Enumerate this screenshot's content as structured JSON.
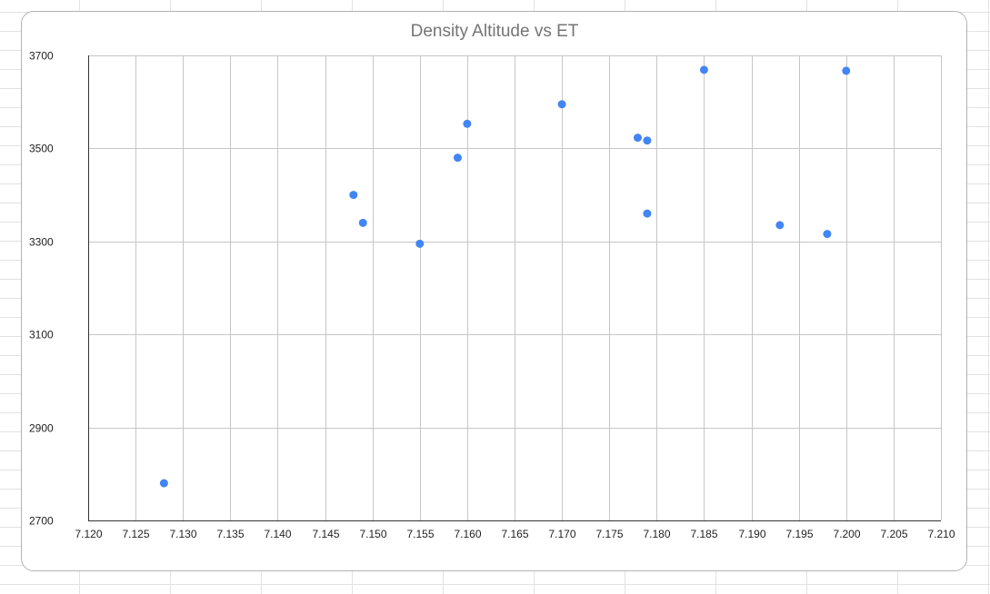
{
  "chart_data": {
    "type": "scatter",
    "title": "Density Altitude vs ET",
    "xlabel": "",
    "ylabel": "",
    "xlim": [
      7.12,
      7.21
    ],
    "ylim": [
      2700,
      3700
    ],
    "x_ticks": [
      "7.120",
      "7.125",
      "7.130",
      "7.135",
      "7.140",
      "7.145",
      "7.150",
      "7.155",
      "7.160",
      "7.165",
      "7.170",
      "7.175",
      "7.180",
      "7.185",
      "7.190",
      "7.195",
      "7.200",
      "7.205",
      "7.210"
    ],
    "y_ticks": [
      "2700",
      "2900",
      "3100",
      "3300",
      "3500",
      "3700"
    ],
    "grid": true,
    "legend": "none",
    "point_color": "#4285f4",
    "series": [
      {
        "points": [
          {
            "x": 7.128,
            "y": 2780
          },
          {
            "x": 7.148,
            "y": 3400
          },
          {
            "x": 7.149,
            "y": 3340
          },
          {
            "x": 7.155,
            "y": 3295
          },
          {
            "x": 7.159,
            "y": 3480
          },
          {
            "x": 7.16,
            "y": 3553
          },
          {
            "x": 7.17,
            "y": 3595
          },
          {
            "x": 7.178,
            "y": 3523
          },
          {
            "x": 7.179,
            "y": 3517
          },
          {
            "x": 7.179,
            "y": 3360
          },
          {
            "x": 7.185,
            "y": 3669
          },
          {
            "x": 7.193,
            "y": 3335
          },
          {
            "x": 7.198,
            "y": 3316
          },
          {
            "x": 7.2,
            "y": 3667
          }
        ]
      }
    ]
  }
}
